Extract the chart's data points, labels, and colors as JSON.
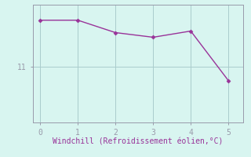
{
  "x": [
    0,
    1,
    2,
    3,
    4,
    5
  ],
  "y": [
    12.5,
    12.5,
    12.1,
    11.95,
    12.15,
    10.55
  ],
  "line_color": "#993399",
  "marker_color": "#993399",
  "bg_color": "#d8f5f0",
  "grid_color": "#aacccc",
  "axis_color": "#999aaa",
  "xlabel": "Windchill (Refroidissement éolien,°C)",
  "xlabel_color": "#993399",
  "ytick_labels": [
    "11"
  ],
  "ytick_values": [
    11
  ],
  "xlim": [
    -0.2,
    5.4
  ],
  "ylim": [
    9.2,
    13.0
  ],
  "xticks": [
    0,
    1,
    2,
    3,
    4,
    5
  ]
}
